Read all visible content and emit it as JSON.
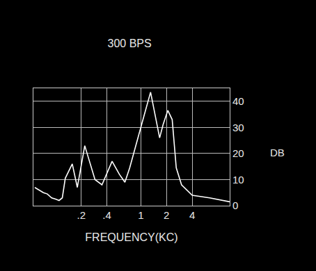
{
  "chart_data": {
    "type": "line",
    "title": "300 BPS",
    "xlabel": "FREQUENCY(KC)",
    "ylabel": "DB",
    "x": [
      0.057,
      0.064,
      0.072,
      0.08,
      0.09,
      0.1,
      0.11,
      0.12,
      0.13,
      0.157,
      0.18,
      0.22,
      0.25,
      0.29,
      0.35,
      0.4,
      0.46,
      0.56,
      0.65,
      0.74,
      0.9,
      1.08,
      1.3,
      1.47,
      1.66,
      1.82,
      2.07,
      2.33,
      2.6,
      3.0,
      4.0,
      6.4,
      11
    ],
    "values": [
      7,
      6,
      5,
      4.5,
      3,
      2.5,
      2,
      3,
      10.5,
      16,
      7,
      23,
      17,
      10,
      8,
      12.5,
      17,
      12,
      9,
      14.5,
      25,
      34,
      43.5,
      35,
      26,
      31,
      36.5,
      33,
      14.5,
      8,
      4,
      3,
      1.5
    ],
    "color": "#ffffff",
    "log": "x",
    "grid": true,
    "xlim": [
      0.055,
      11
    ],
    "xticks": [
      {
        "value": 0.2,
        "label": ".2"
      },
      {
        "value": 0.4,
        "label": ".4"
      },
      1,
      2,
      4
    ],
    "ylim": [
      0,
      45
    ],
    "yticks": [
      0,
      10,
      20,
      30,
      40
    ]
  }
}
